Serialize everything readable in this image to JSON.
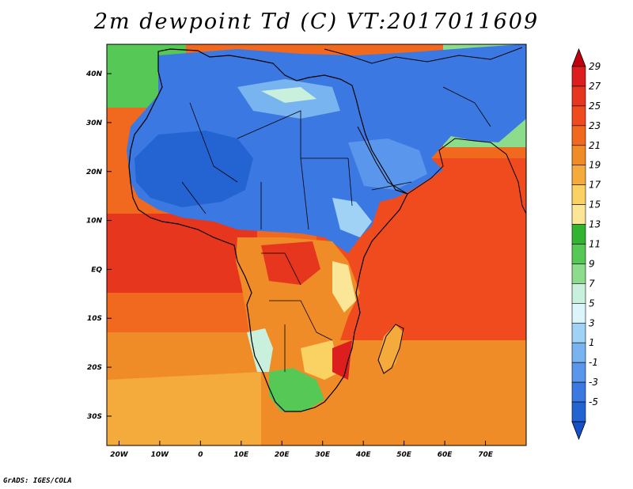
{
  "title": "2m dewpoint Td (C) VT:2017011609",
  "credit": "GrADS: IGES/COLA",
  "map": {
    "lon_range": [
      -23,
      80
    ],
    "lat_range": [
      -36,
      46
    ],
    "lon_ticks": [
      {
        "value": -20,
        "label": "20W"
      },
      {
        "value": -10,
        "label": "10W"
      },
      {
        "value": 0,
        "label": "0"
      },
      {
        "value": 10,
        "label": "10E"
      },
      {
        "value": 20,
        "label": "20E"
      },
      {
        "value": 30,
        "label": "30E"
      },
      {
        "value": 40,
        "label": "40E"
      },
      {
        "value": 50,
        "label": "50E"
      },
      {
        "value": 60,
        "label": "60E"
      },
      {
        "value": 70,
        "label": "70E"
      }
    ],
    "lat_ticks": [
      {
        "value": 40,
        "label": "40N"
      },
      {
        "value": 30,
        "label": "30N"
      },
      {
        "value": 20,
        "label": "20N"
      },
      {
        "value": 10,
        "label": "10N"
      },
      {
        "value": 0,
        "label": "EQ"
      },
      {
        "value": -10,
        "label": "10S"
      },
      {
        "value": -20,
        "label": "20S"
      },
      {
        "value": -30,
        "label": "30S"
      }
    ]
  },
  "colorbar": {
    "labels": [
      "29",
      "27",
      "25",
      "23",
      "21",
      "19",
      "17",
      "15",
      "13",
      "11",
      "9",
      "7",
      "5",
      "3",
      "1",
      "-1",
      "-3",
      "-5"
    ],
    "colors": [
      "#c0000f",
      "#dc1e1e",
      "#e6371e",
      "#f04b1e",
      "#f0691e",
      "#f08c28",
      "#f5aa3c",
      "#fad264",
      "#fae696",
      "#32b432",
      "#55c855",
      "#8cdc8c",
      "#c8f0dc",
      "#dcf5fa",
      "#a0d2f5",
      "#78b4f0",
      "#5a96eb",
      "#3c78e1",
      "#2364d2",
      "#1450c8"
    ]
  }
}
